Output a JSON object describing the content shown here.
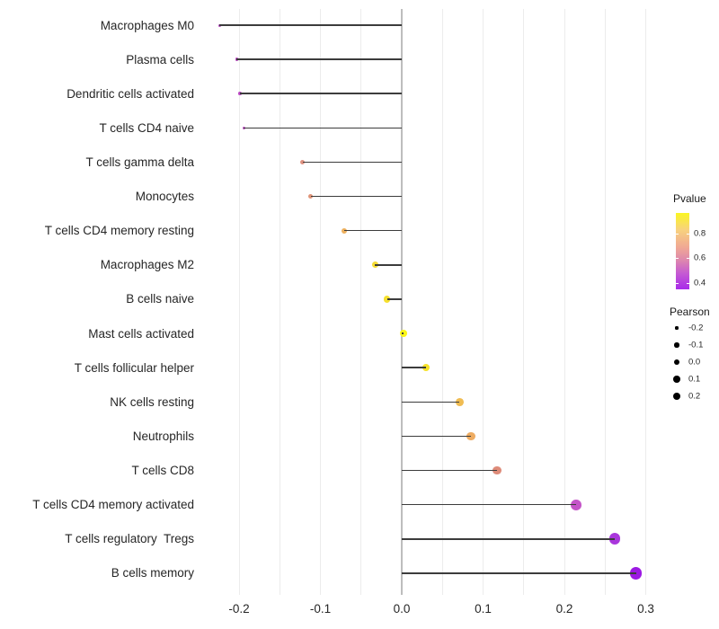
{
  "chart_data": {
    "type": "scatter",
    "subtype": "lollipop",
    "orientation": "horizontal",
    "title": "",
    "xlabel": "",
    "ylabel": "",
    "categories": [
      "Macrophages M0",
      "Plasma cells",
      "Dendritic cells activated",
      "T cells CD4 naive",
      "T cells gamma delta",
      "Monocytes",
      "T cells CD4 memory resting",
      "Macrophages M2",
      "B cells naive",
      "Mast cells activated",
      "T cells follicular helper",
      "NK cells resting",
      "Neutrophils",
      "T cells CD8",
      "T cells CD4 memory activated",
      "T cells regulatory  Tregs",
      "B cells memory"
    ],
    "series": [
      {
        "name": "Pearson",
        "values": [
          -0.224,
          -0.203,
          -0.199,
          -0.194,
          -0.122,
          -0.112,
          -0.071,
          -0.033,
          -0.018,
          0.002,
          0.03,
          0.071,
          0.085,
          0.117,
          0.214,
          0.262,
          0.288
        ]
      },
      {
        "name": "Pvalue",
        "values": [
          0.52,
          0.53,
          0.53,
          0.54,
          0.7,
          0.71,
          0.79,
          0.89,
          0.9,
          0.95,
          0.91,
          0.81,
          0.78,
          0.7,
          0.56,
          0.46,
          0.41
        ]
      }
    ],
    "point_colors": [
      "#B643C2",
      "#BC48C4",
      "#BC4AC4",
      "#BE4CC4",
      "#DF9180",
      "#E09478",
      "#EDB05E",
      "#F5DC35",
      "#F6E02E",
      "#FBF618",
      "#F6E229",
      "#F0BC52",
      "#EEAC62",
      "#DE8B79",
      "#C454C8",
      "#A936DC",
      "#9C19E3"
    ],
    "xlim": [
      -0.25,
      0.32
    ],
    "x_ticks": [
      "-0.2",
      "-0.1",
      "0.0",
      "0.1",
      "0.2",
      "0.3"
    ],
    "x_tick_values": [
      -0.2,
      -0.1,
      0.0,
      0.1,
      0.2,
      0.3
    ],
    "grid": "vertical light-gray lines every 0.05",
    "zero_line": true,
    "legend_position": "right",
    "legends": {
      "pvalue": {
        "title": "Pvalue",
        "ticks": [
          "0.8",
          "0.6",
          "0.4"
        ],
        "tick_values": [
          0.8,
          0.6,
          0.4
        ],
        "gradient_top_color": "#FAF621",
        "gradient_bottom_color": "#A82AEA"
      },
      "pearson": {
        "title": "Pearson",
        "ticks": [
          "-0.2",
          "-0.1",
          "0.0",
          "0.1",
          "0.2"
        ],
        "tick_values": [
          -0.2,
          -0.1,
          0.0,
          0.1,
          0.2
        ],
        "dot_color": "#000000"
      }
    },
    "stem_color": "#3c3c3c",
    "background_color": "#ffffff"
  }
}
